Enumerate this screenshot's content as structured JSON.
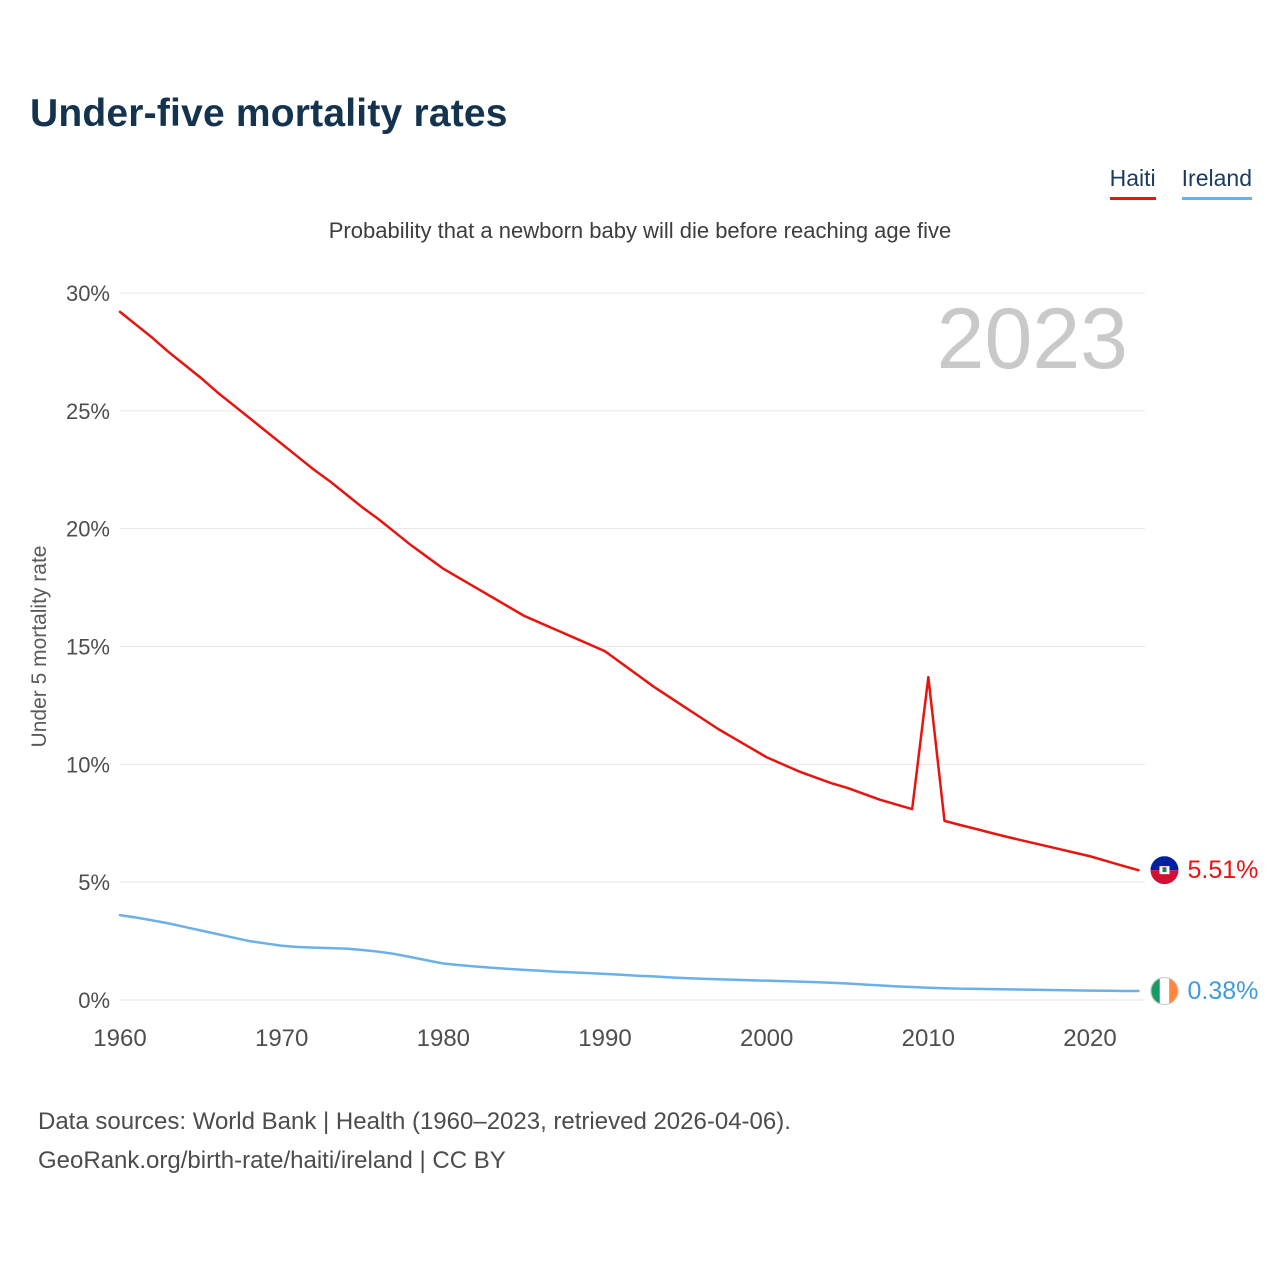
{
  "page": {
    "title": "Under-five mortality rates",
    "subtitle": "Probability that a newborn baby will die before reaching age five",
    "watermark_year": "2023",
    "footer_line1": "Data sources: World Bank | Health (1960–2023, retrieved 2026-04-06).",
    "footer_line2": "GeoRank.org/birth-rate/haiti/ireland | CC BY"
  },
  "legend": [
    {
      "label": "Haiti",
      "color": "#e8140f"
    },
    {
      "label": "Ireland",
      "color": "#6cb0e8"
    }
  ],
  "chart_data": {
    "type": "line",
    "title": "Under-five mortality rates",
    "subtitle": "Probability that a newborn baby will die before reaching age five",
    "ylabel": "Under 5 mortality rate",
    "xlabel": "",
    "ylim": [
      0,
      30
    ],
    "ytick_step": 5,
    "yticks": [
      "0%",
      "5%",
      "10%",
      "15%",
      "20%",
      "25%",
      "30%"
    ],
    "xticks": [
      1960,
      1970,
      1980,
      1990,
      2000,
      2010,
      2020
    ],
    "x_range": [
      1960,
      2023
    ],
    "x_step": 1,
    "grid": true,
    "legend_position": "top-right",
    "watermark": "2023",
    "series": [
      {
        "name": "Haiti",
        "color": "#e8140f",
        "label_color": "#e8140f",
        "end_label": "5.51%",
        "end_value": 5.51,
        "values": [
          29.2,
          28.65,
          28.1,
          27.5,
          26.95,
          26.4,
          25.8,
          25.25,
          24.7,
          24.15,
          23.6,
          23.05,
          22.5,
          22.0,
          21.45,
          20.9,
          20.4,
          19.85,
          19.3,
          18.8,
          18.3,
          17.9,
          17.5,
          17.1,
          16.7,
          16.3,
          16.0,
          15.7,
          15.4,
          15.1,
          14.8,
          14.3,
          13.8,
          13.3,
          12.85,
          12.4,
          11.95,
          11.5,
          11.1,
          10.7,
          10.3,
          10.0,
          9.7,
          9.45,
          9.2,
          9.0,
          8.75,
          8.5,
          8.3,
          8.1,
          13.7,
          7.6,
          7.42,
          7.25,
          7.07,
          6.9,
          6.74,
          6.58,
          6.42,
          6.26,
          6.1,
          5.9,
          5.7,
          5.51
        ]
      },
      {
        "name": "Ireland",
        "color": "#6cb0e8",
        "label_color": "#3f9be0",
        "end_label": "0.38%",
        "end_value": 0.38,
        "values": [
          3.6,
          3.5,
          3.38,
          3.25,
          3.1,
          2.95,
          2.8,
          2.65,
          2.5,
          2.4,
          2.3,
          2.25,
          2.22,
          2.2,
          2.18,
          2.12,
          2.05,
          1.95,
          1.82,
          1.68,
          1.55,
          1.48,
          1.42,
          1.37,
          1.32,
          1.28,
          1.24,
          1.2,
          1.17,
          1.14,
          1.11,
          1.07,
          1.03,
          1.0,
          0.96,
          0.93,
          0.9,
          0.88,
          0.86,
          0.84,
          0.82,
          0.8,
          0.78,
          0.76,
          0.73,
          0.7,
          0.66,
          0.62,
          0.58,
          0.55,
          0.52,
          0.5,
          0.48,
          0.47,
          0.46,
          0.45,
          0.44,
          0.43,
          0.42,
          0.41,
          0.4,
          0.39,
          0.38,
          0.38
        ]
      }
    ],
    "flag_colors": {
      "haiti_blue": "#00209f",
      "haiti_red": "#d21034",
      "ireland_green": "#169b62",
      "ireland_white": "#ffffff",
      "ireland_orange": "#ff883e"
    }
  }
}
